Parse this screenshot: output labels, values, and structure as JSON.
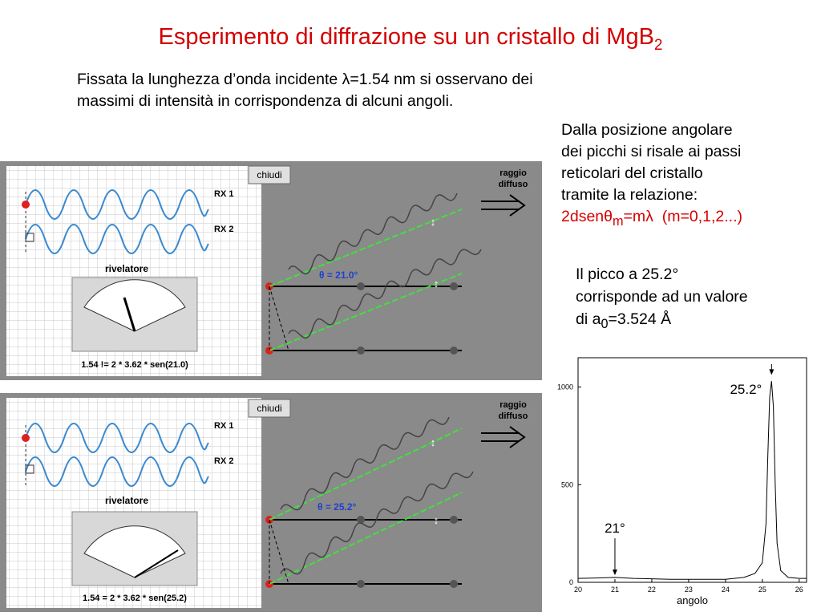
{
  "slide": {
    "title_main": "Esperimento di diffrazione su un cristallo di MgB",
    "title_sub": "2",
    "intro_line1": "Fissata la lunghezza d’onda incidente λ=1.54 nm si osservano dei",
    "intro_line2": "massimi di intensità in corrispondenza di alcuni angoli.",
    "side_lines": [
      "Dalla posizione angolare",
      "dei picchi si risale ai passi",
      "reticolari del cristallo",
      "tramite la relazione:"
    ],
    "formula_a": "2dsenθ",
    "formula_sub": "m",
    "formula_b": "=mλ",
    "formula_c": "(m=0,1,2...)",
    "peak_line1": "Il picco a 25.2°",
    "peak_line2": "corrisponde ad un valore",
    "peak_line3a": "di  a",
    "peak_line3sub": "0",
    "peak_line3b": "=3.524 Å"
  },
  "sims": [
    {
      "close_label": "chiudi",
      "out_line1": "raggio",
      "out_line2": "diffuso",
      "rx1": "RX 1",
      "rx2": "RX 2",
      "detector_label": "rivelatore",
      "angle_label": "θ = 21.0°",
      "equation": "1.54 != 2 * 3.62 * sen(21.0)",
      "status_color": "#e02020"
    },
    {
      "close_label": "chiudi",
      "out_line1": "raggio",
      "out_line2": "diffuso",
      "rx1": "RX 1",
      "rx2": "RX 2",
      "detector_label": "rivelatore",
      "angle_label": "θ = 25.2°",
      "equation": "1.54 = 2 * 3.62 * sen(25.2)",
      "status_color": "#30d030"
    }
  ],
  "chart_data": {
    "type": "line",
    "xlabel": "angolo",
    "ylabel": "",
    "xlim": [
      20,
      26.2
    ],
    "ylim": [
      0,
      1150
    ],
    "x_ticks": [
      20,
      21,
      22,
      23,
      24,
      25,
      26
    ],
    "y_ticks": [
      0,
      500,
      1000
    ],
    "annotations": [
      {
        "text": "25.2°",
        "x": 25.25,
        "y": 1050
      },
      {
        "text": "21°",
        "x": 21.0,
        "y": 20
      }
    ],
    "series": [
      {
        "x": [
          20.0,
          20.5,
          21.0,
          21.5,
          22.0,
          22.5,
          23.0,
          23.5,
          24.0,
          24.5,
          24.8,
          25.0,
          25.1,
          25.15,
          25.2,
          25.25,
          25.3,
          25.35,
          25.4,
          25.5,
          25.7,
          26.0,
          26.2
        ],
        "y": [
          20,
          22,
          25,
          20,
          18,
          15,
          15,
          15,
          15,
          25,
          45,
          100,
          300,
          650,
          950,
          1030,
          900,
          500,
          200,
          60,
          25,
          20,
          20
        ]
      }
    ]
  }
}
